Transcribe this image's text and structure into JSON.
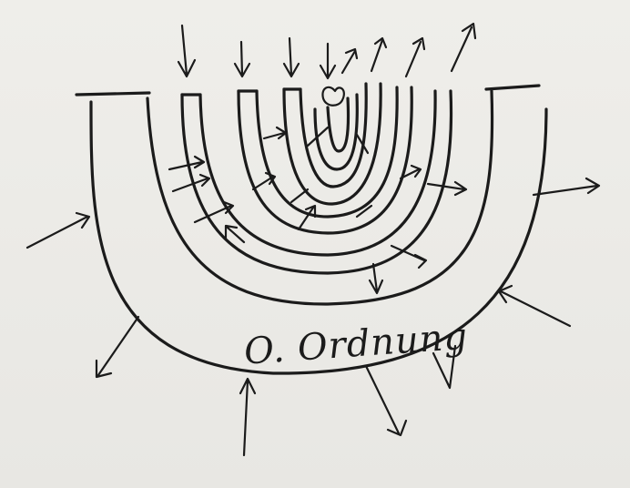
{
  "label": "O. Ordnung",
  "ink_color": "#1b1b1b",
  "paper_color": "#ecebe7"
}
